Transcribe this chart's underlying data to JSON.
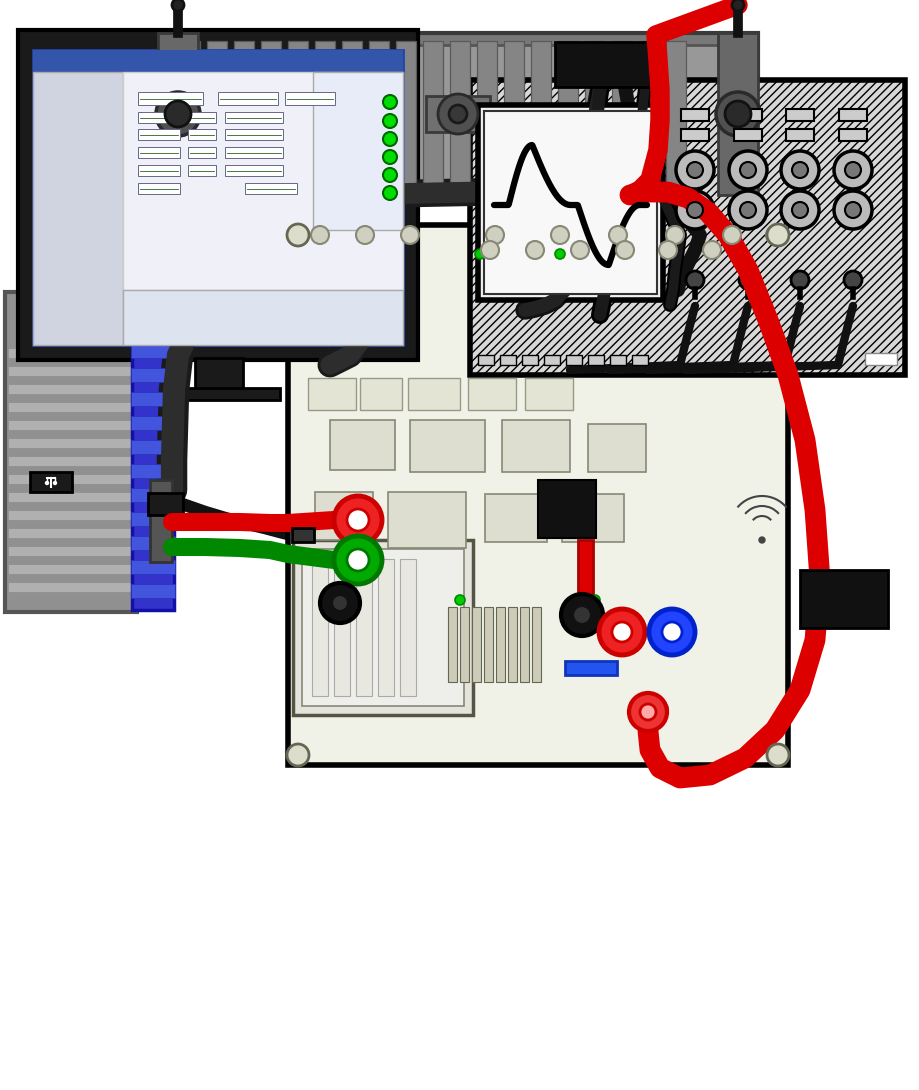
{
  "bg_color": "#ffffff",
  "fig_width": 9.19,
  "fig_height": 10.9,
  "colors": {
    "red_wire": "#dd0000",
    "green_wire": "#008800",
    "black_wire": "#111111",
    "dark_cable": "#222222",
    "blue_handle": "#3333cc",
    "pcb_bg": "#f0f2e8",
    "monitor_frame": "#1a1a1a",
    "screen_bg": "#c8d0e0",
    "osc_body": "#d8d8d8"
  }
}
